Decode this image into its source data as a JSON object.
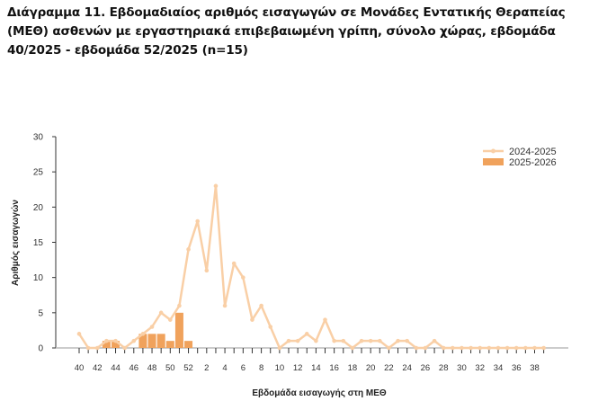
{
  "chart_data": {
    "type": "bar+line",
    "title": "Διάγραμμα 11. Εβδομαδιαίος αριθμός εισαγωγών σε Μονάδες Εντατικής Θεραπείας (ΜΕΘ) ασθενών με εργαστηριακά επιβεβαιωμένη γρίπη, σύνολο χώρας, εβδομάδα 40/2025 - εβδομάδα 52/2025 (n=15)",
    "xlabel": "Εβδομάδα εισαγωγής στη ΜΕΘ",
    "ylabel": "Αριθμός εισαγωγών",
    "ylim": [
      0,
      30
    ],
    "yticks": [
      0,
      5,
      10,
      15,
      20,
      25,
      30
    ],
    "weeks": [
      40,
      41,
      42,
      43,
      44,
      45,
      46,
      47,
      48,
      49,
      50,
      51,
      52,
      1,
      2,
      3,
      4,
      5,
      6,
      7,
      8,
      9,
      10,
      11,
      12,
      13,
      14,
      15,
      16,
      17,
      18,
      19,
      20,
      21,
      22,
      23,
      24,
      25,
      26,
      27,
      28,
      29,
      30,
      31,
      32,
      33,
      34,
      35,
      36,
      37,
      38,
      39
    ],
    "xticklabels": [
      "40",
      "42",
      "44",
      "46",
      "48",
      "50",
      "52",
      "2",
      "4",
      "6",
      "8",
      "10",
      "12",
      "14",
      "16",
      "18",
      "20",
      "22",
      "24",
      "26",
      "28",
      "30",
      "32",
      "34",
      "36",
      "38"
    ],
    "legend_position": "top-right",
    "grid": false,
    "series": [
      {
        "name": "2024-2025",
        "type": "line",
        "color": "#f9cfa6",
        "values": [
          2,
          0,
          0,
          1,
          1,
          0,
          1,
          2,
          3,
          5,
          4,
          6,
          14,
          18,
          11,
          23,
          6,
          12,
          10,
          4,
          6,
          3,
          0,
          1,
          1,
          2,
          1,
          4,
          1,
          1,
          0,
          1,
          1,
          1,
          0,
          1,
          1,
          0,
          0,
          1,
          0,
          0,
          0,
          0,
          0,
          0,
          0,
          0,
          0,
          0,
          0,
          0
        ]
      },
      {
        "name": "2025-2026",
        "type": "bar",
        "color": "#f0a25c",
        "values": [
          0,
          0,
          0,
          1,
          1,
          0,
          0,
          2,
          2,
          2,
          1,
          5,
          1
        ]
      }
    ]
  }
}
